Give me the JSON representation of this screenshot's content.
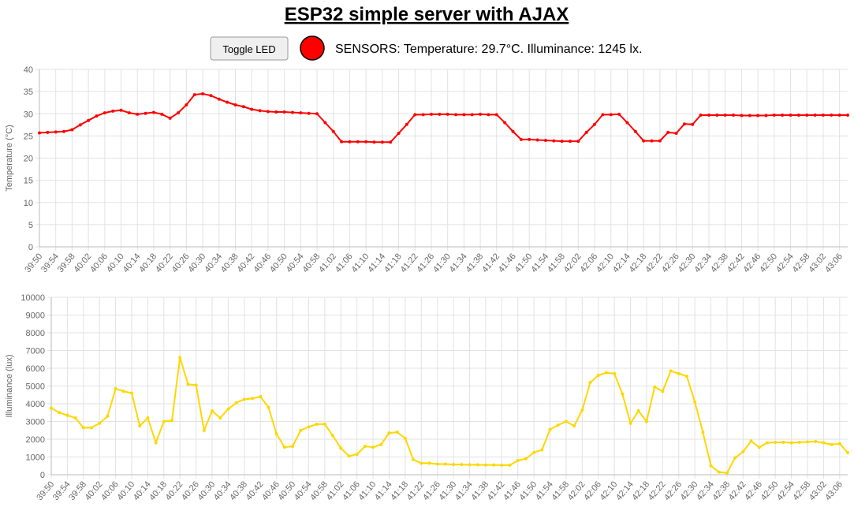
{
  "page": {
    "title": "ESP32 simple server with AJAX",
    "button_label": "Toggle LED",
    "status_text": "SENSORS: Temperature: 29.7°C. Illuminance: 1245 lx."
  },
  "chart_data": [
    {
      "type": "line",
      "y_label": "Temperature (°C)",
      "color": "#ff0000",
      "grid": true,
      "ylim": [
        0,
        40
      ],
      "yticks": [
        0,
        5,
        10,
        15,
        20,
        25,
        30,
        35,
        40
      ],
      "categories": [
        "39:50",
        null,
        "39:54",
        null,
        "39:58",
        null,
        "40:02",
        null,
        "40:06",
        null,
        "40:10",
        null,
        "40:14",
        null,
        "40:18",
        null,
        "40:22",
        null,
        "40:26",
        null,
        "40:30",
        null,
        "40:34",
        null,
        "40:38",
        null,
        "40:42",
        null,
        "40:46",
        null,
        "40:50",
        null,
        "40:54",
        null,
        "40:58",
        null,
        "41:02",
        null,
        "41:06",
        null,
        "41:10",
        null,
        "41:14",
        null,
        "41:18",
        null,
        "41:22",
        null,
        "41:26",
        null,
        "41:30",
        null,
        "41:34",
        null,
        "41:38",
        null,
        "41:42",
        null,
        "41:46",
        null,
        "41:50",
        null,
        "41:54",
        null,
        "41:58",
        null,
        "42:02",
        null,
        "42:06",
        null,
        "42:10",
        null,
        "42:14",
        null,
        "42:18",
        null,
        "42:22",
        null,
        "42:26",
        null,
        "42:30",
        null,
        "42:34",
        null,
        "42:38",
        null,
        "42:42",
        null,
        "42:46",
        null,
        "42:50",
        null,
        "42:54",
        null,
        "42:58",
        null,
        "43:02",
        null,
        "43:06",
        null
      ],
      "values": [
        25.7,
        25.8,
        25.9,
        26.0,
        26.4,
        27.5,
        28.5,
        29.5,
        30.2,
        30.6,
        30.8,
        30.2,
        29.9,
        30.1,
        30.3,
        29.9,
        29.0,
        30.2,
        32.0,
        34.3,
        34.5,
        34.1,
        33.3,
        32.6,
        32.0,
        31.6,
        31.0,
        30.7,
        30.5,
        30.4,
        30.4,
        30.3,
        30.2,
        30.1,
        30.0,
        28.0,
        26.0,
        23.7,
        23.7,
        23.7,
        23.7,
        23.6,
        23.6,
        23.6,
        25.6,
        27.6,
        29.8,
        29.8,
        29.9,
        29.9,
        29.9,
        29.8,
        29.8,
        29.8,
        29.9,
        29.8,
        29.8,
        28.0,
        26.0,
        24.2,
        24.2,
        24.1,
        24.0,
        23.9,
        23.8,
        23.8,
        23.8,
        25.8,
        27.6,
        29.8,
        29.8,
        29.9,
        28.0,
        26.0,
        23.9,
        23.9,
        23.9,
        25.8,
        25.6,
        27.7,
        27.6,
        29.7,
        29.7,
        29.7,
        29.7,
        29.7,
        29.6,
        29.6,
        29.6,
        29.6,
        29.7,
        29.7,
        29.7,
        29.7,
        29.7,
        29.7,
        29.7,
        29.7,
        29.7,
        29.7
      ]
    },
    {
      "type": "line",
      "y_label": "Illuminance (lux)",
      "color": "#ffd700",
      "grid": true,
      "ylim": [
        0,
        10000
      ],
      "yticks": [
        0,
        1000,
        2000,
        3000,
        4000,
        5000,
        6000,
        7000,
        8000,
        9000,
        10000
      ],
      "categories": [
        "39:50",
        null,
        "39:54",
        null,
        "39:58",
        null,
        "40:02",
        null,
        "40:06",
        null,
        "40:10",
        null,
        "40:14",
        null,
        "40:18",
        null,
        "40:22",
        null,
        "40:26",
        null,
        "40:30",
        null,
        "40:34",
        null,
        "40:38",
        null,
        "40:42",
        null,
        "40:46",
        null,
        "40:50",
        null,
        "40:54",
        null,
        "40:58",
        null,
        "41:02",
        null,
        "41:06",
        null,
        "41:10",
        null,
        "41:14",
        null,
        "41:18",
        null,
        "41:22",
        null,
        "41:26",
        null,
        "41:30",
        null,
        "41:34",
        null,
        "41:38",
        null,
        "41:42",
        null,
        "41:46",
        null,
        "41:50",
        null,
        "41:54",
        null,
        "41:58",
        null,
        "42:02",
        null,
        "42:06",
        null,
        "42:10",
        null,
        "42:14",
        null,
        "42:18",
        null,
        "42:22",
        null,
        "42:26",
        null,
        "42:30",
        null,
        "42:34",
        null,
        "42:38",
        null,
        "42:42",
        null,
        "42:46",
        null,
        "42:50",
        null,
        "42:54",
        null,
        "42:58",
        null,
        "43:02",
        null,
        "43:06",
        null
      ],
      "values": [
        3750,
        3500,
        3350,
        3200,
        2650,
        2650,
        2900,
        3300,
        4850,
        4700,
        4600,
        2750,
        3200,
        1800,
        3000,
        3050,
        6600,
        5100,
        5050,
        2500,
        3600,
        3200,
        3700,
        4050,
        4250,
        4300,
        4400,
        3800,
        2300,
        1550,
        1600,
        2500,
        2700,
        2850,
        2850,
        2200,
        1500,
        1050,
        1150,
        1600,
        1550,
        1700,
        2350,
        2400,
        2050,
        850,
        650,
        650,
        600,
        600,
        580,
        570,
        560,
        560,
        550,
        550,
        540,
        540,
        800,
        900,
        1250,
        1400,
        2550,
        2800,
        3000,
        2750,
        3650,
        5200,
        5600,
        5750,
        5700,
        4550,
        2900,
        3600,
        3000,
        4950,
        4700,
        5850,
        5700,
        5550,
        4100,
        2400,
        500,
        150,
        100,
        950,
        1300,
        1900,
        1550,
        1800,
        1820,
        1830,
        1800,
        1830,
        1850,
        1870,
        1800,
        1700,
        1750,
        1245
      ]
    }
  ]
}
